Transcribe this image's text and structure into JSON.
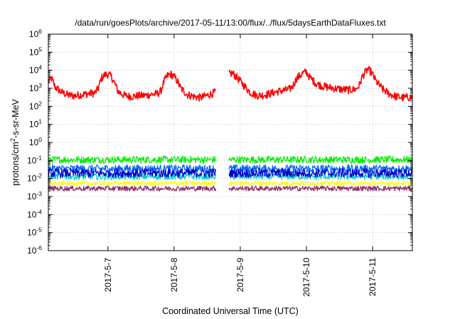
{
  "chart_data": {
    "type": "line",
    "title": "/data/run/goesPlots/archive/2017-05-11/13:00/flux/../flux/5daysEarthDataFluxes.txt",
    "xlabel": "Coordinated Universal Time (UTC)",
    "ylabel": {
      "base": "protons/cm",
      "sup": "2",
      "rest": "-s-sr-MeV"
    },
    "yscale": "log",
    "ylim": [
      1e-06,
      1000000.0
    ],
    "xlim": [
      6.1,
      11.6
    ],
    "grid": true,
    "legend": "none",
    "x_unit_note": "x values are days of May 2017 (UTC)",
    "gap": [
      8.63,
      8.83
    ],
    "x_ticks": [
      {
        "value": 7,
        "label": "2017-5-7"
      },
      {
        "value": 8,
        "label": "2017-5-8"
      },
      {
        "value": 9,
        "label": "2017-5-9"
      },
      {
        "value": 10,
        "label": "2017-5-10"
      },
      {
        "value": 11,
        "label": "2017-5-11"
      }
    ],
    "y_ticks": [
      {
        "exp": -6,
        "label": "10",
        "sup": "-6"
      },
      {
        "exp": -5,
        "label": "10",
        "sup": "-5"
      },
      {
        "exp": -4,
        "label": "10",
        "sup": "-4"
      },
      {
        "exp": -3,
        "label": "10",
        "sup": "-3"
      },
      {
        "exp": -2,
        "label": "10",
        "sup": "-2"
      },
      {
        "exp": -1,
        "label": "10",
        "sup": "-1"
      },
      {
        "exp": 0,
        "label": "10",
        "sup": "0"
      },
      {
        "exp": 1,
        "label": "10",
        "sup": "1"
      },
      {
        "exp": 2,
        "label": "10",
        "sup": "2"
      },
      {
        "exp": 3,
        "label": "10",
        "sup": "3"
      },
      {
        "exp": 4,
        "label": "10",
        "sup": "4"
      },
      {
        "exp": 5,
        "label": "10",
        "sup": "5"
      },
      {
        "exp": 6,
        "label": "10",
        "sup": "6"
      }
    ],
    "series": [
      {
        "color": "#ff0000",
        "noise": 0.22,
        "points": [
          [
            6.1,
            2500
          ],
          [
            6.15,
            3500
          ],
          [
            6.2,
            1200
          ],
          [
            6.3,
            600
          ],
          [
            6.4,
            420
          ],
          [
            6.5,
            380
          ],
          [
            6.6,
            450
          ],
          [
            6.7,
            500
          ],
          [
            6.8,
            550
          ],
          [
            6.85,
            900
          ],
          [
            6.9,
            3500
          ],
          [
            6.95,
            5500
          ],
          [
            7.0,
            6000
          ],
          [
            7.05,
            4500
          ],
          [
            7.1,
            2000
          ],
          [
            7.15,
            700
          ],
          [
            7.25,
            400
          ],
          [
            7.35,
            350
          ],
          [
            7.45,
            380
          ],
          [
            7.55,
            400
          ],
          [
            7.65,
            450
          ],
          [
            7.75,
            500
          ],
          [
            7.8,
            700
          ],
          [
            7.85,
            2500
          ],
          [
            7.9,
            5000
          ],
          [
            7.95,
            6000
          ],
          [
            8.0,
            4500
          ],
          [
            8.05,
            2500
          ],
          [
            8.1,
            1000
          ],
          [
            8.2,
            450
          ],
          [
            8.3,
            350
          ],
          [
            8.4,
            300
          ],
          [
            8.5,
            400
          ],
          [
            8.6,
            550
          ],
          [
            8.63,
            600
          ]
        ]
      },
      {
        "color": "#ff0000",
        "noise": 0.22,
        "points": [
          [
            8.83,
            6000
          ],
          [
            8.88,
            7000
          ],
          [
            8.95,
            4000
          ],
          [
            9.05,
            1500
          ],
          [
            9.15,
            600
          ],
          [
            9.25,
            400
          ],
          [
            9.35,
            420
          ],
          [
            9.45,
            500
          ],
          [
            9.55,
            650
          ],
          [
            9.65,
            750
          ],
          [
            9.75,
            900
          ],
          [
            9.8,
            1500
          ],
          [
            9.85,
            3500
          ],
          [
            9.95,
            7000
          ],
          [
            10.0,
            8000
          ],
          [
            10.05,
            4000
          ],
          [
            10.15,
            1800
          ],
          [
            10.25,
            1300
          ],
          [
            10.35,
            1100
          ],
          [
            10.5,
            900
          ],
          [
            10.65,
            800
          ],
          [
            10.75,
            900
          ],
          [
            10.8,
            1500
          ],
          [
            10.85,
            5000
          ],
          [
            10.92,
            11000
          ],
          [
            10.98,
            8000
          ],
          [
            11.05,
            2500
          ],
          [
            11.15,
            900
          ],
          [
            11.25,
            500
          ],
          [
            11.35,
            350
          ],
          [
            11.45,
            300
          ],
          [
            11.55,
            320
          ],
          [
            11.6,
            300
          ]
        ]
      },
      {
        "color": "#00ee00",
        "noise": 0.2,
        "points": [
          [
            6.1,
            0.11
          ],
          [
            8.63,
            0.11
          ]
        ]
      },
      {
        "color": "#00ee00",
        "noise": 0.2,
        "points": [
          [
            8.83,
            0.11
          ],
          [
            11.6,
            0.11
          ]
        ]
      },
      {
        "color": "#0066ff",
        "noise": 0.22,
        "points": [
          [
            6.1,
            0.035
          ],
          [
            8.63,
            0.035
          ]
        ]
      },
      {
        "color": "#0066ff",
        "noise": 0.22,
        "points": [
          [
            8.83,
            0.035
          ],
          [
            11.6,
            0.035
          ]
        ]
      },
      {
        "color": "#00cccc",
        "noise": 0.18,
        "points": [
          [
            6.1,
            0.013
          ],
          [
            8.63,
            0.013
          ]
        ]
      },
      {
        "color": "#00cccc",
        "noise": 0.18,
        "points": [
          [
            8.83,
            0.013
          ],
          [
            11.6,
            0.013
          ]
        ]
      },
      {
        "color": "#0000cc",
        "noise": 0.25,
        "points": [
          [
            6.1,
            0.02
          ],
          [
            8.63,
            0.02
          ]
        ]
      },
      {
        "color": "#0000cc",
        "noise": 0.25,
        "points": [
          [
            8.83,
            0.02
          ],
          [
            11.6,
            0.02
          ]
        ]
      },
      {
        "color": "#ffff00",
        "noise": 0.12,
        "points": [
          [
            6.1,
            0.0055
          ],
          [
            8.63,
            0.0055
          ]
        ]
      },
      {
        "color": "#ffff00",
        "noise": 0.12,
        "points": [
          [
            8.83,
            0.0055
          ],
          [
            11.6,
            0.0055
          ]
        ]
      },
      {
        "color": "#8b2a6b",
        "noise": 0.14,
        "points": [
          [
            6.1,
            0.0028
          ],
          [
            8.63,
            0.0028
          ]
        ]
      },
      {
        "color": "#8b2a6b",
        "noise": 0.14,
        "points": [
          [
            8.83,
            0.0028
          ],
          [
            11.6,
            0.0028
          ]
        ]
      }
    ]
  }
}
